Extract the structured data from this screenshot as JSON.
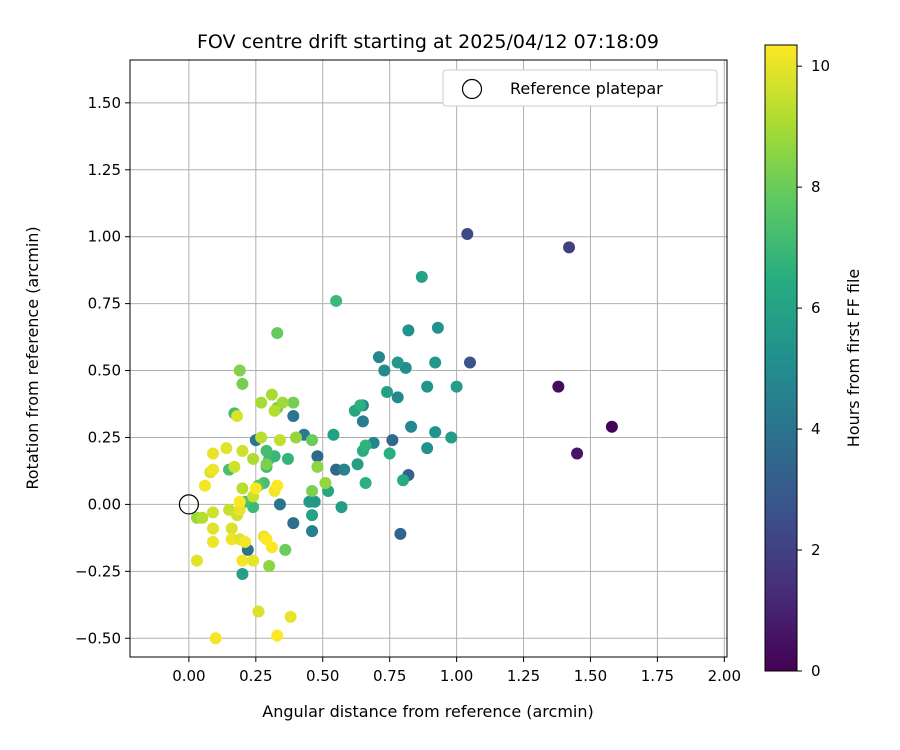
{
  "chart_data": {
    "type": "scatter",
    "title": "FOV centre drift starting at 2025/04/12 07:18:09",
    "xlabel": "Angular distance from reference (arcmin)",
    "ylabel": "Rotation from reference (arcmin)",
    "xlim": [
      -0.22,
      2.01
    ],
    "ylim": [
      -0.57,
      1.66
    ],
    "xticks": [
      0.0,
      0.25,
      0.5,
      0.75,
      1.0,
      1.25,
      1.5,
      1.75,
      2.0
    ],
    "xtick_labels": [
      "0.00",
      "0.25",
      "0.50",
      "0.75",
      "1.00",
      "1.25",
      "1.50",
      "1.75",
      "2.00"
    ],
    "yticks": [
      -0.5,
      -0.25,
      0.0,
      0.25,
      0.5,
      0.75,
      1.0,
      1.25,
      1.5
    ],
    "ytick_labels": [
      "−0.50",
      "−0.25",
      "0.00",
      "0.25",
      "0.50",
      "0.75",
      "1.00",
      "1.25",
      "1.50"
    ],
    "grid": true,
    "colormap": "viridis",
    "colorbar": {
      "label": "Hours from first FF file",
      "range": [
        0,
        10.35
      ],
      "ticks": [
        0,
        2,
        4,
        6,
        8,
        10
      ],
      "tick_labels": [
        "0",
        "2",
        "4",
        "6",
        "8",
        "10"
      ]
    },
    "legend": {
      "position": "top-right",
      "entries": [
        {
          "label": "Reference platepar",
          "marker": "open-circle"
        }
      ]
    },
    "reference_point": {
      "x": 0.0,
      "y": 0.0
    },
    "points": [
      {
        "x": 1.58,
        "y": 0.29,
        "c": 0.1
      },
      {
        "x": 1.38,
        "y": 0.44,
        "c": 0.3
      },
      {
        "x": 1.45,
        "y": 0.19,
        "c": 0.6
      },
      {
        "x": 1.42,
        "y": 0.96,
        "c": 2.0
      },
      {
        "x": 1.04,
        "y": 1.01,
        "c": 2.3
      },
      {
        "x": 1.05,
        "y": 0.53,
        "c": 2.7
      },
      {
        "x": 0.82,
        "y": 0.11,
        "c": 3.3
      },
      {
        "x": 0.79,
        "y": -0.11,
        "c": 3.4
      },
      {
        "x": 0.76,
        "y": 0.24,
        "c": 3.6
      },
      {
        "x": 0.55,
        "y": 0.13,
        "c": 3.5
      },
      {
        "x": 0.48,
        "y": 0.18,
        "c": 3.6
      },
      {
        "x": 0.39,
        "y": -0.07,
        "c": 3.8
      },
      {
        "x": 0.34,
        "y": 0.0,
        "c": 4.0
      },
      {
        "x": 0.22,
        "y": -0.17,
        "c": 3.9
      },
      {
        "x": 0.25,
        "y": 0.24,
        "c": 4.0
      },
      {
        "x": 0.39,
        "y": 0.33,
        "c": 4.1
      },
      {
        "x": 0.43,
        "y": 0.26,
        "c": 4.3
      },
      {
        "x": 0.46,
        "y": -0.1,
        "c": 4.5
      },
      {
        "x": 0.58,
        "y": 0.13,
        "c": 4.6
      },
      {
        "x": 0.65,
        "y": 0.37,
        "c": 4.5
      },
      {
        "x": 0.65,
        "y": 0.31,
        "c": 4.4
      },
      {
        "x": 0.69,
        "y": 0.23,
        "c": 4.7
      },
      {
        "x": 0.71,
        "y": 0.55,
        "c": 4.8
      },
      {
        "x": 0.73,
        "y": 0.5,
        "c": 5.0
      },
      {
        "x": 0.78,
        "y": 0.4,
        "c": 4.9
      },
      {
        "x": 0.81,
        "y": 0.51,
        "c": 5.1
      },
      {
        "x": 0.83,
        "y": 0.29,
        "c": 4.8
      },
      {
        "x": 0.82,
        "y": 0.65,
        "c": 5.3
      },
      {
        "x": 0.93,
        "y": 0.66,
        "c": 5.4
      },
      {
        "x": 0.92,
        "y": 0.53,
        "c": 5.5
      },
      {
        "x": 0.89,
        "y": 0.44,
        "c": 5.4
      },
      {
        "x": 0.92,
        "y": 0.27,
        "c": 5.3
      },
      {
        "x": 0.89,
        "y": 0.21,
        "c": 5.2
      },
      {
        "x": 0.87,
        "y": 0.85,
        "c": 6.0
      },
      {
        "x": 0.98,
        "y": 0.25,
        "c": 5.7
      },
      {
        "x": 1.0,
        "y": 0.44,
        "c": 5.8
      },
      {
        "x": 0.78,
        "y": 0.53,
        "c": 5.6
      },
      {
        "x": 0.74,
        "y": 0.42,
        "c": 5.9
      },
      {
        "x": 0.8,
        "y": 0.09,
        "c": 6.4
      },
      {
        "x": 0.75,
        "y": 0.19,
        "c": 6.5
      },
      {
        "x": 0.66,
        "y": 0.08,
        "c": 6.6
      },
      {
        "x": 0.65,
        "y": 0.2,
        "c": 6.4
      },
      {
        "x": 0.66,
        "y": 0.22,
        "c": 6.7
      },
      {
        "x": 0.63,
        "y": 0.15,
        "c": 5.8
      },
      {
        "x": 0.62,
        "y": 0.35,
        "c": 6.1
      },
      {
        "x": 0.64,
        "y": 0.37,
        "c": 6.6
      },
      {
        "x": 0.54,
        "y": 0.26,
        "c": 5.9
      },
      {
        "x": 0.57,
        "y": -0.01,
        "c": 5.7
      },
      {
        "x": 0.52,
        "y": 0.05,
        "c": 6.2
      },
      {
        "x": 0.47,
        "y": 0.01,
        "c": 5.5
      },
      {
        "x": 0.46,
        "y": -0.04,
        "c": 6.0
      },
      {
        "x": 0.45,
        "y": 0.01,
        "c": 5.6
      },
      {
        "x": 0.55,
        "y": 0.76,
        "c": 7.0
      },
      {
        "x": 0.37,
        "y": 0.17,
        "c": 6.8
      },
      {
        "x": 0.32,
        "y": 0.18,
        "c": 6.9
      },
      {
        "x": 0.29,
        "y": 0.14,
        "c": 7.1
      },
      {
        "x": 0.3,
        "y": 0.17,
        "c": 7.0
      },
      {
        "x": 0.28,
        "y": 0.08,
        "c": 7.3
      },
      {
        "x": 0.29,
        "y": 0.2,
        "c": 7.2
      },
      {
        "x": 0.24,
        "y": -0.01,
        "c": 7.0
      },
      {
        "x": 0.21,
        "y": 0.01,
        "c": 7.4
      },
      {
        "x": 0.17,
        "y": 0.34,
        "c": 7.1
      },
      {
        "x": 0.15,
        "y": 0.13,
        "c": 7.3
      },
      {
        "x": 0.2,
        "y": -0.26,
        "c": 5.9
      },
      {
        "x": 0.33,
        "y": 0.64,
        "c": 7.9
      },
      {
        "x": 0.19,
        "y": 0.5,
        "c": 8.4
      },
      {
        "x": 0.2,
        "y": 0.45,
        "c": 8.2
      },
      {
        "x": 0.26,
        "y": 0.07,
        "c": 7.6
      },
      {
        "x": 0.33,
        "y": 0.36,
        "c": 8.0
      },
      {
        "x": 0.39,
        "y": 0.38,
        "c": 8.2
      },
      {
        "x": 0.46,
        "y": 0.24,
        "c": 8.0
      },
      {
        "x": 0.46,
        "y": 0.05,
        "c": 8.3
      },
      {
        "x": 0.48,
        "y": 0.14,
        "c": 8.6
      },
      {
        "x": 0.51,
        "y": 0.08,
        "c": 8.7
      },
      {
        "x": 0.36,
        "y": -0.17,
        "c": 8.0
      },
      {
        "x": 0.3,
        "y": -0.23,
        "c": 8.6
      },
      {
        "x": 0.29,
        "y": 0.15,
        "c": 8.3
      },
      {
        "x": 0.31,
        "y": 0.41,
        "c": 9.0
      },
      {
        "x": 0.35,
        "y": 0.38,
        "c": 8.9
      },
      {
        "x": 0.32,
        "y": 0.35,
        "c": 9.2
      },
      {
        "x": 0.4,
        "y": 0.25,
        "c": 8.7
      },
      {
        "x": 0.34,
        "y": 0.24,
        "c": 9.4
      },
      {
        "x": 0.27,
        "y": 0.38,
        "c": 9.0
      },
      {
        "x": 0.27,
        "y": 0.25,
        "c": 9.3
      },
      {
        "x": 0.24,
        "y": 0.17,
        "c": 9.1
      },
      {
        "x": 0.24,
        "y": 0.03,
        "c": 9.5
      },
      {
        "x": 0.2,
        "y": 0.2,
        "c": 9.6
      },
      {
        "x": 0.2,
        "y": 0.06,
        "c": 9.3
      },
      {
        "x": 0.18,
        "y": 0.33,
        "c": 9.8
      },
      {
        "x": 0.17,
        "y": 0.14,
        "c": 9.6
      },
      {
        "x": 0.14,
        "y": 0.21,
        "c": 9.9
      },
      {
        "x": 0.09,
        "y": 0.19,
        "c": 10.0
      },
      {
        "x": 0.08,
        "y": 0.12,
        "c": 9.8
      },
      {
        "x": 0.09,
        "y": 0.13,
        "c": 10.1
      },
      {
        "x": 0.06,
        "y": 0.07,
        "c": 10.2
      },
      {
        "x": 0.03,
        "y": -0.05,
        "c": 8.8
      },
      {
        "x": 0.05,
        "y": -0.05,
        "c": 9.2
      },
      {
        "x": 0.09,
        "y": -0.03,
        "c": 9.6
      },
      {
        "x": 0.09,
        "y": -0.09,
        "c": 9.9
      },
      {
        "x": 0.09,
        "y": -0.14,
        "c": 10.1
      },
      {
        "x": 0.03,
        "y": -0.21,
        "c": 9.9
      },
      {
        "x": 0.15,
        "y": -0.02,
        "c": 9.5
      },
      {
        "x": 0.18,
        "y": -0.04,
        "c": 9.6
      },
      {
        "x": 0.16,
        "y": -0.09,
        "c": 9.8
      },
      {
        "x": 0.16,
        "y": -0.13,
        "c": 10.1
      },
      {
        "x": 0.19,
        "y": -0.02,
        "c": 10.0
      },
      {
        "x": 0.19,
        "y": 0.01,
        "c": 10.3
      },
      {
        "x": 0.19,
        "y": -0.13,
        "c": 9.9
      },
      {
        "x": 0.21,
        "y": -0.14,
        "c": 10.2
      },
      {
        "x": 0.2,
        "y": -0.21,
        "c": 10.2
      },
      {
        "x": 0.24,
        "y": -0.21,
        "c": 10.0
      },
      {
        "x": 0.25,
        "y": 0.06,
        "c": 10.3
      },
      {
        "x": 0.28,
        "y": -0.12,
        "c": 10.0
      },
      {
        "x": 0.29,
        "y": -0.13,
        "c": 10.3
      },
      {
        "x": 0.31,
        "y": -0.16,
        "c": 10.3
      },
      {
        "x": 0.32,
        "y": 0.05,
        "c": 10.2
      },
      {
        "x": 0.33,
        "y": 0.07,
        "c": 10.3
      },
      {
        "x": 0.26,
        "y": -0.4,
        "c": 9.8
      },
      {
        "x": 0.38,
        "y": -0.42,
        "c": 10.0
      },
      {
        "x": 0.1,
        "y": -0.5,
        "c": 10.2
      },
      {
        "x": 0.33,
        "y": -0.49,
        "c": 10.3
      }
    ]
  }
}
